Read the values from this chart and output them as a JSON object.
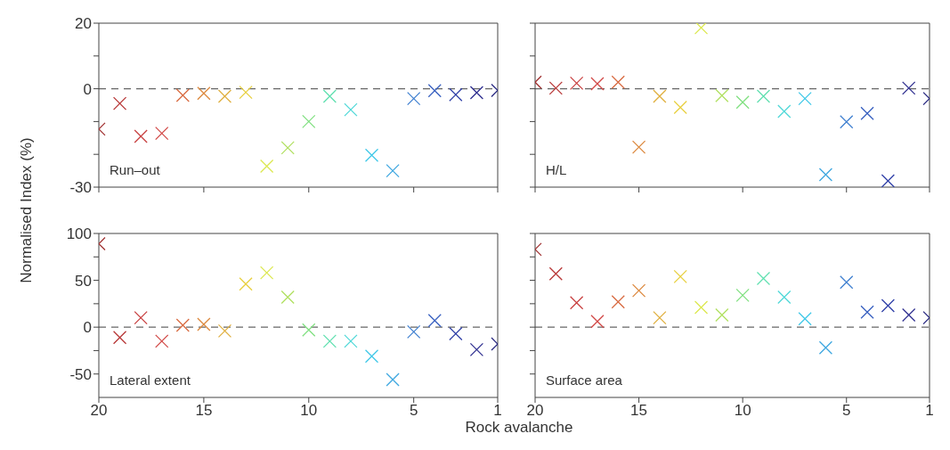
{
  "chart_data": [
    {
      "type": "scatter",
      "ylabel": "Normalised Index (%)",
      "annotations": [
        "Run–out"
      ],
      "marker": "cross",
      "tick_labels": "y",
      "x": [
        20,
        19,
        18,
        17,
        16,
        15,
        14,
        13,
        12,
        11,
        10,
        9,
        8,
        7,
        6,
        5,
        4,
        3,
        2,
        1
      ],
      "xlim": [
        20,
        1
      ],
      "xticks": [
        20,
        15,
        10,
        5,
        1
      ],
      "ylim": [
        -30,
        20
      ],
      "yticks": [
        -30,
        {
          "value": -20,
          "label": null
        },
        {
          "value": -10,
          "label": null
        },
        0,
        {
          "value": 10,
          "label": null
        },
        20
      ],
      "ref_lines": [
        {
          "axis": "y",
          "value": 0,
          "color": "#666666",
          "line_style": "dashed"
        }
      ],
      "series": [
        {
          "colors": [
            "#a03030",
            "#b83838",
            "#c84040",
            "#d24a48",
            "#d86a40",
            "#dc8a40",
            "#e0b040",
            "#e8d040",
            "#dce850",
            "#b0e060",
            "#80e080",
            "#60e0b0",
            "#50d8d8",
            "#40c8e8",
            "#40a8e0",
            "#4080d0",
            "#3860c0",
            "#3040a8",
            "#303090",
            "#282880"
          ],
          "values": [
            -12.3,
            -4.5,
            -14.5,
            -13.6,
            -2,
            -1.4,
            -2.3,
            -1.1,
            -23.6,
            -18,
            -10,
            -2.3,
            -6.4,
            -20.3,
            -25,
            -3,
            -0.6,
            -1.8,
            -1.2,
            -0.5
          ]
        }
      ]
    },
    {
      "type": "scatter",
      "annotations": [
        "H/L"
      ],
      "marker": "cross",
      "tick_labels": false,
      "x": [
        20,
        19,
        18,
        17,
        16,
        15,
        14,
        13,
        12,
        11,
        10,
        9,
        8,
        7,
        6,
        5,
        4,
        3,
        2,
        1
      ],
      "xlim": [
        20,
        1
      ],
      "xticks": [
        20,
        15,
        10,
        5,
        1
      ],
      "ylim": [
        -30,
        20
      ],
      "yticks": [
        -30,
        {
          "value": -20,
          "label": null
        },
        {
          "value": -10,
          "label": null
        },
        0,
        {
          "value": 10,
          "label": null
        },
        20
      ],
      "ref_lines": [
        {
          "axis": "y",
          "value": 0,
          "color": "#666666",
          "line_style": "dashed"
        }
      ],
      "series": [
        {
          "colors": [
            "#a03030",
            "#b83838",
            "#c84040",
            "#d24a48",
            "#d86a40",
            "#dc8a40",
            "#e0b040",
            "#e8d040",
            "#dce850",
            "#b0e060",
            "#80e080",
            "#60e0b0",
            "#50d8d8",
            "#40c8e8",
            "#40a8e0",
            "#4080d0",
            "#3860c0",
            "#3040a8",
            "#303090",
            "#282880"
          ],
          "values": [
            2,
            0.2,
            1.7,
            1.5,
            2,
            -17.8,
            -2.3,
            -5.7,
            18.6,
            -2.1,
            -4.1,
            -2.3,
            -6.9,
            -3,
            -26.2,
            -10.1,
            -7.5,
            -28.1,
            0.2,
            -3
          ]
        }
      ]
    },
    {
      "type": "scatter",
      "xlabel": "Rock avalanche",
      "annotations": [
        "Lateral extent"
      ],
      "marker": "cross",
      "x": [
        20,
        19,
        18,
        17,
        16,
        15,
        14,
        13,
        12,
        11,
        10,
        9,
        8,
        7,
        6,
        5,
        4,
        3,
        2,
        1
      ],
      "xlim": [
        20,
        1
      ],
      "xticks": [
        20,
        15,
        10,
        5,
        1
      ],
      "ylim": [
        -75,
        100
      ],
      "yticks": [
        -50,
        {
          "value": -25,
          "label": null
        },
        0,
        {
          "value": 25,
          "label": null
        },
        50,
        {
          "value": 75,
          "label": null
        },
        100
      ],
      "ref_lines": [
        {
          "axis": "y",
          "value": 0,
          "color": "#666666",
          "line_style": "dashed"
        }
      ],
      "series": [
        {
          "colors": [
            "#a03030",
            "#b83838",
            "#c84040",
            "#d24a48",
            "#d86a40",
            "#dc8a40",
            "#e0b040",
            "#e8d040",
            "#dce850",
            "#b0e060",
            "#80e080",
            "#60e0b0",
            "#50d8d8",
            "#40c8e8",
            "#40a8e0",
            "#4080d0",
            "#3860c0",
            "#3040a8",
            "#303090",
            "#282880"
          ],
          "values": [
            89,
            -11,
            10,
            -15,
            2,
            3,
            -4,
            46,
            58,
            32,
            -3,
            -15,
            -15,
            -31,
            -56,
            -5,
            7,
            -7,
            -24,
            -18
          ]
        }
      ]
    },
    {
      "type": "scatter",
      "annotations": [
        "Surface area"
      ],
      "marker": "cross",
      "tick_labels": "x",
      "x": [
        20,
        19,
        18,
        17,
        16,
        15,
        14,
        13,
        12,
        11,
        10,
        9,
        8,
        7,
        6,
        5,
        4,
        3,
        2,
        1
      ],
      "xlim": [
        20,
        1
      ],
      "xticks": [
        20,
        15,
        10,
        5,
        1
      ],
      "ylim": [
        -75,
        100
      ],
      "yticks": [
        -50,
        {
          "value": -25,
          "label": null
        },
        0,
        {
          "value": 25,
          "label": null
        },
        50,
        {
          "value": 75,
          "label": null
        },
        100
      ],
      "ref_lines": [
        {
          "axis": "y",
          "value": 0,
          "color": "#666666",
          "line_style": "dashed"
        }
      ],
      "series": [
        {
          "colors": [
            "#a03030",
            "#b83838",
            "#c84040",
            "#d24a48",
            "#d86a40",
            "#dc8a40",
            "#e0b040",
            "#e8d040",
            "#dce850",
            "#b0e060",
            "#80e080",
            "#60e0b0",
            "#50d8d8",
            "#40c8e8",
            "#40a8e0",
            "#4080d0",
            "#3860c0",
            "#3040a8",
            "#303090",
            "#282880"
          ],
          "values": [
            83,
            57,
            26,
            6,
            27,
            39,
            10,
            54,
            21,
            13,
            34,
            52,
            32,
            9,
            -22,
            48,
            16,
            23,
            13,
            10
          ]
        }
      ]
    }
  ]
}
